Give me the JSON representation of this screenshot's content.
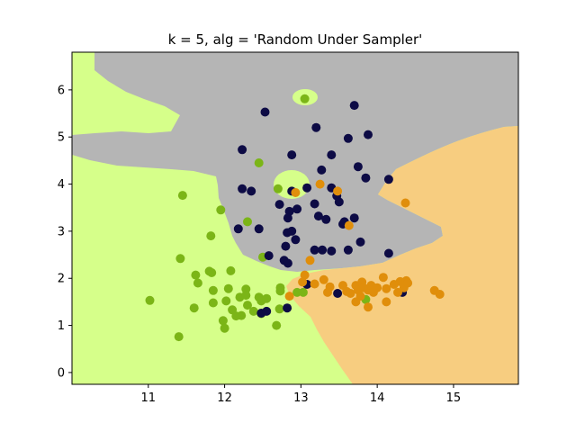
{
  "chart_data": {
    "type": "scatter",
    "title": "k = 5, alg = 'Random Under Sampler'",
    "xlabel": "",
    "ylabel": "",
    "xlim": [
      10.0,
      15.85
    ],
    "ylim": [
      -0.25,
      6.8
    ],
    "xticks": [
      11,
      12,
      13,
      14,
      15
    ],
    "yticks": [
      0,
      1,
      2,
      3,
      4,
      5,
      6
    ],
    "grid": false,
    "region_colors": {
      "class_0": "#d6ff8a",
      "class_1": "#b5b5b5",
      "class_2": "#f7cd80"
    },
    "series": [
      {
        "color": "#7bb517",
        "points": [
          [
            13.05,
            5.81
          ],
          [
            12.45,
            4.45
          ],
          [
            11.45,
            3.76
          ],
          [
            12.7,
            3.9
          ],
          [
            12.3,
            3.2
          ],
          [
            11.95,
            3.45
          ],
          [
            11.82,
            2.9
          ],
          [
            11.42,
            2.42
          ],
          [
            12.5,
            2.45
          ],
          [
            11.62,
            2.07
          ],
          [
            11.65,
            1.9
          ],
          [
            11.8,
            2.15
          ],
          [
            11.83,
            2.12
          ],
          [
            12.08,
            2.16
          ],
          [
            11.85,
            1.74
          ],
          [
            12.05,
            1.78
          ],
          [
            11.85,
            1.48
          ],
          [
            12.02,
            1.52
          ],
          [
            12.1,
            1.33
          ],
          [
            12.2,
            1.6
          ],
          [
            12.28,
            1.77
          ],
          [
            12.28,
            1.64
          ],
          [
            12.3,
            1.43
          ],
          [
            12.22,
            1.21
          ],
          [
            12.15,
            1.2
          ],
          [
            12.45,
            1.6
          ],
          [
            12.48,
            1.52
          ],
          [
            12.55,
            1.57
          ],
          [
            12.73,
            1.8
          ],
          [
            12.73,
            1.73
          ],
          [
            12.95,
            1.7
          ],
          [
            12.38,
            1.3
          ],
          [
            12.48,
            1.25
          ],
          [
            12.72,
            1.35
          ],
          [
            12.68,
            1.0
          ],
          [
            11.98,
            1.1
          ],
          [
            12.0,
            0.94
          ],
          [
            11.6,
            1.37
          ],
          [
            11.02,
            1.53
          ],
          [
            11.4,
            0.76
          ],
          [
            13.03,
            1.7
          ],
          [
            13.85,
            1.55
          ]
        ]
      },
      {
        "color": "#0d0b45",
        "points": [
          [
            12.53,
            5.53
          ],
          [
            13.7,
            5.67
          ],
          [
            13.2,
            5.2
          ],
          [
            13.62,
            4.97
          ],
          [
            13.88,
            5.05
          ],
          [
            12.23,
            4.73
          ],
          [
            12.88,
            4.62
          ],
          [
            13.4,
            4.62
          ],
          [
            13.27,
            4.3
          ],
          [
            13.75,
            4.37
          ],
          [
            13.85,
            4.13
          ],
          [
            14.15,
            4.1
          ],
          [
            13.08,
            3.92
          ],
          [
            13.4,
            3.92
          ],
          [
            13.47,
            3.75
          ],
          [
            13.5,
            3.62
          ],
          [
            12.23,
            3.9
          ],
          [
            12.35,
            3.85
          ],
          [
            12.88,
            3.85
          ],
          [
            12.72,
            3.57
          ],
          [
            12.85,
            3.42
          ],
          [
            12.83,
            3.28
          ],
          [
            12.95,
            3.47
          ],
          [
            13.18,
            3.58
          ],
          [
            13.23,
            3.32
          ],
          [
            13.33,
            3.25
          ],
          [
            13.55,
            3.15
          ],
          [
            13.57,
            3.2
          ],
          [
            13.7,
            3.28
          ],
          [
            12.18,
            3.05
          ],
          [
            12.45,
            3.05
          ],
          [
            12.82,
            2.97
          ],
          [
            12.88,
            3.0
          ],
          [
            12.93,
            2.82
          ],
          [
            12.8,
            2.68
          ],
          [
            12.58,
            2.48
          ],
          [
            13.28,
            2.6
          ],
          [
            13.18,
            2.6
          ],
          [
            13.4,
            2.58
          ],
          [
            13.62,
            2.6
          ],
          [
            13.78,
            2.77
          ],
          [
            14.15,
            2.53
          ],
          [
            12.78,
            2.38
          ],
          [
            12.83,
            2.32
          ],
          [
            13.08,
            1.87
          ],
          [
            13.48,
            1.68
          ],
          [
            14.33,
            1.7
          ],
          [
            12.82,
            1.37
          ],
          [
            12.48,
            1.26
          ],
          [
            12.55,
            1.3
          ]
        ]
      },
      {
        "color": "#e08e0b",
        "points": [
          [
            13.25,
            4.0
          ],
          [
            13.48,
            3.85
          ],
          [
            12.93,
            3.82
          ],
          [
            14.37,
            3.6
          ],
          [
            13.63,
            3.12
          ],
          [
            13.12,
            2.38
          ],
          [
            13.05,
            2.07
          ],
          [
            13.02,
            1.92
          ],
          [
            13.18,
            1.88
          ],
          [
            13.3,
            1.97
          ],
          [
            13.38,
            1.82
          ],
          [
            13.35,
            1.7
          ],
          [
            13.55,
            1.85
          ],
          [
            13.6,
            1.72
          ],
          [
            13.65,
            1.68
          ],
          [
            13.72,
            1.85
          ],
          [
            13.75,
            1.75
          ],
          [
            13.78,
            1.62
          ],
          [
            13.8,
            1.92
          ],
          [
            13.82,
            1.8
          ],
          [
            13.88,
            1.75
          ],
          [
            13.92,
            1.85
          ],
          [
            13.95,
            1.7
          ],
          [
            13.72,
            1.5
          ],
          [
            13.88,
            1.39
          ],
          [
            14.08,
            2.02
          ],
          [
            14.22,
            1.87
          ],
          [
            14.27,
            1.7
          ],
          [
            14.3,
            1.93
          ],
          [
            14.35,
            1.8
          ],
          [
            14.38,
            1.95
          ],
          [
            14.4,
            1.9
          ],
          [
            14.12,
            1.78
          ],
          [
            14.0,
            1.8
          ],
          [
            14.12,
            1.5
          ],
          [
            12.85,
            1.62
          ],
          [
            14.75,
            1.74
          ],
          [
            14.82,
            1.66
          ]
        ]
      }
    ]
  }
}
